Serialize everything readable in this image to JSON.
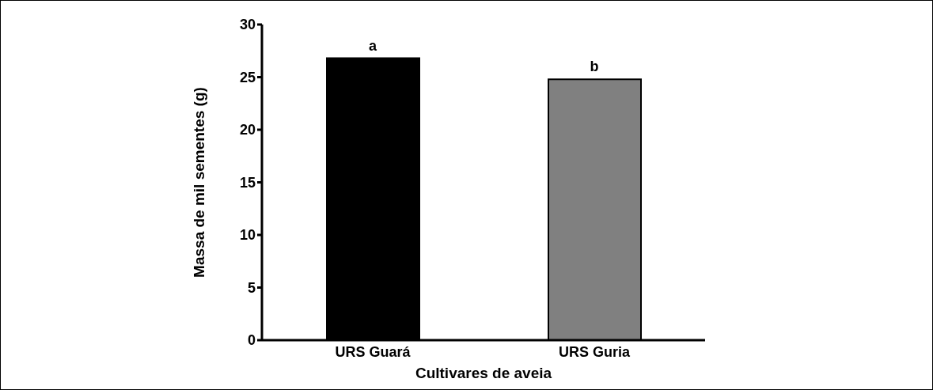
{
  "chart_data": {
    "type": "bar",
    "xlabel": "Cultivares de aveia",
    "ylabel": "Massa de mil sementes (g)",
    "categories": [
      "URS Guará",
      "URS Guria"
    ],
    "values": [
      26.8,
      24.8
    ],
    "colors": [
      "#000000",
      "#808080"
    ],
    "ylim": [
      0,
      30
    ],
    "yticks": [
      0,
      5,
      10,
      15,
      20,
      25,
      30
    ],
    "grid": false,
    "annotations": [
      {
        "text": "a",
        "x": "URS Guará",
        "y": 26.8
      },
      {
        "text": "b",
        "x": "URS Guria",
        "y": 24.8
      }
    ]
  }
}
